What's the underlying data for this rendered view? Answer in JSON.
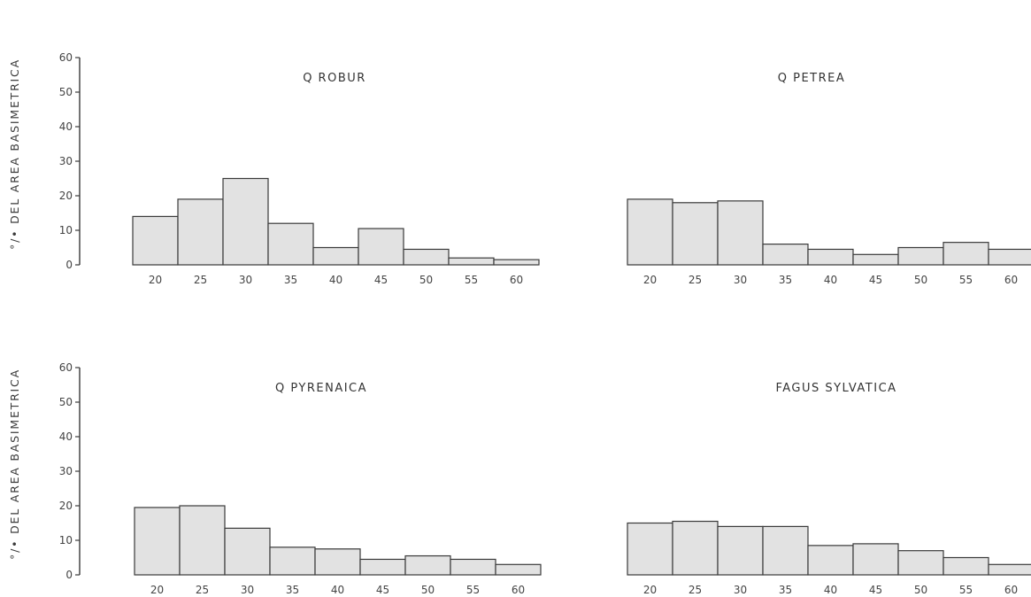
{
  "ylabel": "°/• DEL AREA BASIMETRICA",
  "chart_data": [
    {
      "type": "bar",
      "title": "Q ROBUR",
      "ylabel": "°/• DEL AREA BASIMETRICA",
      "categories": [
        "20",
        "25",
        "30",
        "35",
        "40",
        "45",
        "50",
        "55",
        "60"
      ],
      "values": [
        14,
        19,
        25,
        12,
        5,
        10.5,
        4.5,
        2,
        1.5
      ],
      "ylim": [
        0,
        60
      ],
      "yticks": [
        0,
        10,
        20,
        30,
        40,
        50,
        60
      ]
    },
    {
      "type": "bar",
      "title": "Q PETREA",
      "categories": [
        "20",
        "25",
        "30",
        "35",
        "40",
        "45",
        "50",
        "55",
        "60"
      ],
      "values": [
        19,
        18,
        18.5,
        6,
        4.5,
        3,
        5,
        6.5,
        4.5
      ],
      "ylim": [
        0,
        60
      ]
    },
    {
      "type": "bar",
      "title": "Q PYRENAICA",
      "ylabel": "°/• DEL AREA BASIMETRICA",
      "categories": [
        "20",
        "25",
        "30",
        "35",
        "40",
        "45",
        "50",
        "55",
        "60"
      ],
      "values": [
        19.5,
        20,
        13.5,
        8,
        7.5,
        4.5,
        5.5,
        4.5,
        3
      ],
      "ylim": [
        0,
        60
      ],
      "yticks": [
        0,
        10,
        20,
        30,
        40,
        50,
        60
      ]
    },
    {
      "type": "bar",
      "title": "FAGUS SYLVATICA",
      "categories": [
        "20",
        "25",
        "30",
        "35",
        "40",
        "45",
        "50",
        "55",
        "60"
      ],
      "values": [
        15,
        15.5,
        14,
        14,
        8.5,
        9,
        7,
        5,
        3
      ],
      "ylim": [
        0,
        60
      ]
    }
  ]
}
